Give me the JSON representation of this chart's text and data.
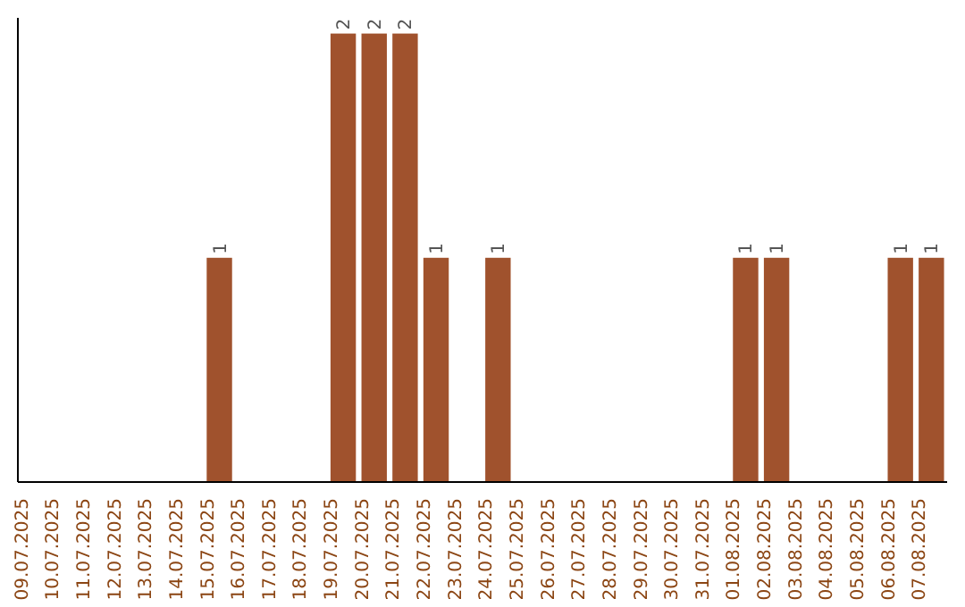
{
  "chart_data": {
    "type": "bar",
    "categories": [
      "09.07.2025",
      "10.07.2025",
      "11.07.2025",
      "12.07.2025",
      "13.07.2025",
      "14.07.2025",
      "15.07.2025",
      "16.07.2025",
      "17.07.2025",
      "18.07.2025",
      "19.07.2025",
      "20.07.2025",
      "21.07.2025",
      "22.07.2025",
      "23.07.2025",
      "24.07.2025",
      "25.07.2025",
      "26.07.2025",
      "27.07.2025",
      "28.07.2025",
      "29.07.2025",
      "30.07.2025",
      "31.07.2025",
      "01.08.2025",
      "02.08.2025",
      "03.08.2025",
      "04.08.2025",
      "05.08.2025",
      "06.08.2025",
      "07.08.2025"
    ],
    "values": [
      0,
      0,
      0,
      0,
      0,
      0,
      1,
      0,
      0,
      0,
      2,
      2,
      2,
      1,
      0,
      1,
      0,
      0,
      0,
      0,
      0,
      0,
      0,
      1,
      1,
      0,
      0,
      0,
      1,
      1
    ],
    "value_labels": [
      null,
      null,
      null,
      null,
      null,
      null,
      "1",
      null,
      null,
      null,
      "2",
      "2",
      "2",
      "1",
      null,
      "1",
      null,
      null,
      null,
      null,
      null,
      null,
      null,
      "1",
      "1",
      null,
      null,
      null,
      "1",
      "1"
    ],
    "color": "#a0522d",
    "tick_labels": "x",
    "grid": false
  }
}
